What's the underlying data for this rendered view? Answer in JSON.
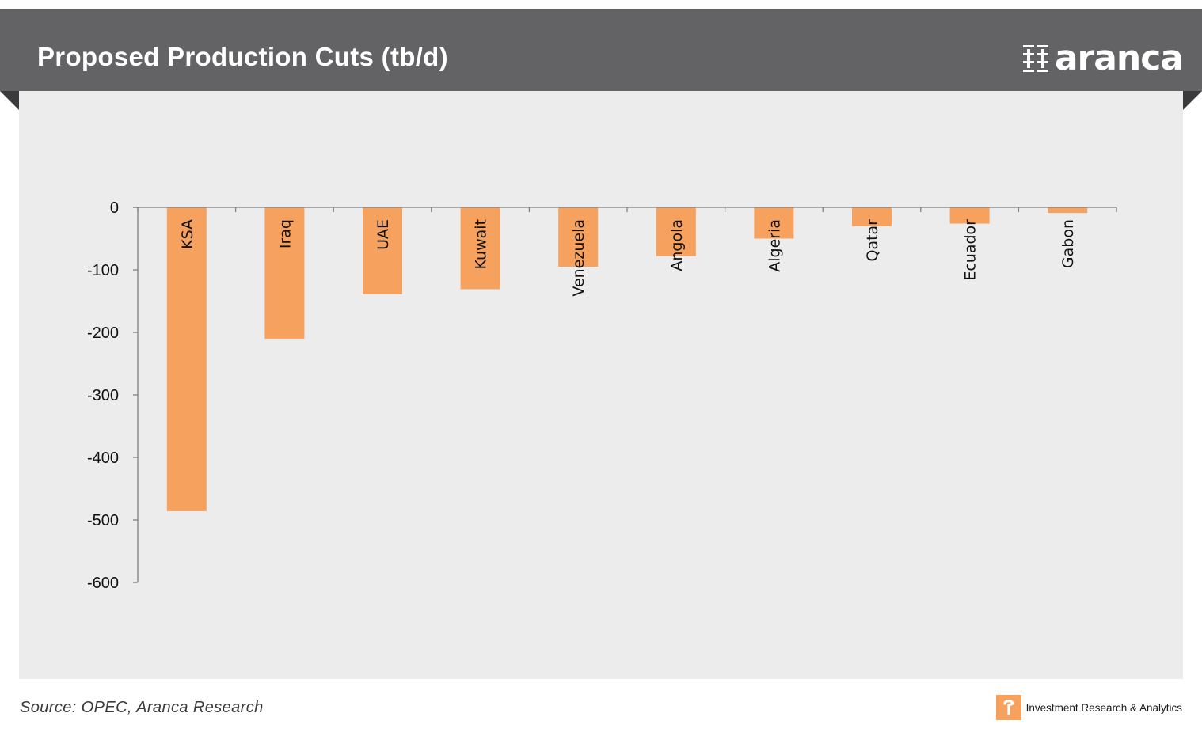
{
  "header": {
    "title": "Proposed Production Cuts (tb/d)",
    "logo_text": "aranca",
    "logo_icon": "aranca-logo-icon"
  },
  "footer": {
    "source": "Source: OPEC, Aranca Research",
    "tagline": "Investment  Research & Analytics",
    "badge_icon": "aranca-badge-icon"
  },
  "colors": {
    "banner": "#636365",
    "panel": "#ececec",
    "bar": "#f7a15e",
    "axis": "#7f7f7f"
  },
  "chart_data": {
    "type": "bar",
    "title": "Proposed Production Cuts (tb/d)",
    "xlabel": "",
    "ylabel": "",
    "categories": [
      "KSA",
      "Iraq",
      "UAE",
      "Kuwait",
      "Venezuela",
      "Angola",
      "Algeria",
      "Qatar",
      "Ecuador",
      "Gabon"
    ],
    "values": [
      -486,
      -210,
      -139,
      -131,
      -95,
      -78,
      -50,
      -30,
      -26,
      -9
    ],
    "ylim": [
      -600,
      0
    ],
    "yticks": [
      0,
      -100,
      -200,
      -300,
      -400,
      -500,
      -600
    ],
    "grid": false,
    "legend": "none"
  }
}
